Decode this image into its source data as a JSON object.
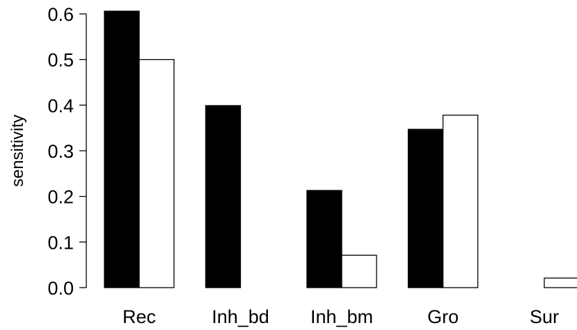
{
  "chart_data": {
    "type": "bar",
    "categories": [
      "Rec",
      "Inh_bd",
      "Inh_bm",
      "Gro",
      "Sur"
    ],
    "series": [
      {
        "values": [
          0.606,
          0.399,
          0.213,
          0.347,
          0.0
        ],
        "fill": "#000000"
      },
      {
        "values": [
          0.5,
          0.0,
          0.071,
          0.378,
          0.021
        ],
        "fill": "#ffffff"
      }
    ],
    "title": "",
    "xlabel": "",
    "ylabel": "sensitivity",
    "ylim": [
      0,
      0.6
    ],
    "yticks": [
      "0.0",
      "0.1",
      "0.2",
      "0.3",
      "0.4",
      "0.5",
      "0.6"
    ],
    "grid": false,
    "legend": "none"
  }
}
